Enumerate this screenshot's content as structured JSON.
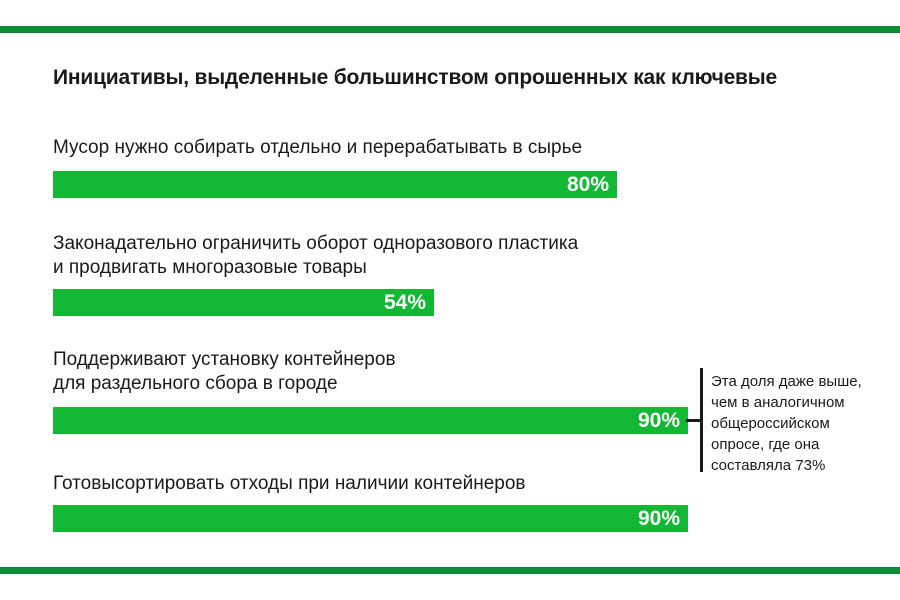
{
  "colors": {
    "accent": "#12b833",
    "rule": "#0c8a35",
    "text": "#1a1a1a"
  },
  "chart_data": {
    "type": "bar",
    "orientation": "horizontal",
    "title": "Инициативы, выделенные большинством опрошенных как ключевые",
    "categories": [
      "Мусор нужно собирать отдельно и перерабатывать в сырье",
      "Законадательно ограничить оборот одноразового пластика\nи продвигать многоразовые товары",
      "Поддерживают установку контейнеров\nдля раздельного сбора в городе",
      "Готовысортировать отходы при наличии контейнеров"
    ],
    "values": [
      80,
      54,
      90,
      90
    ],
    "value_labels": [
      "80%",
      "54%",
      "90%",
      "90%"
    ],
    "unit": "%",
    "xlim": [
      0,
      100
    ],
    "grid": false,
    "legend": "none",
    "annotation": {
      "target": 2,
      "text": "Эта доля даже выше,\nчем в аналогичном\nобщероссийском\nопросе, где она\nсоставляла 73%"
    }
  }
}
